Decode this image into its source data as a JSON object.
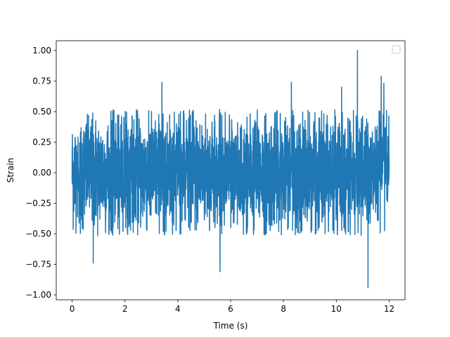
{
  "chart_data": {
    "type": "line",
    "title": "",
    "xlabel": "Time (s)",
    "ylabel": "Strain",
    "xlim": [
      -0.6,
      12.6
    ],
    "ylim": [
      -1.04,
      1.08
    ],
    "x_ticks": [
      0,
      2,
      4,
      6,
      8,
      10,
      12
    ],
    "x_tick_labels": [
      "0",
      "2",
      "4",
      "6",
      "8",
      "10",
      "12"
    ],
    "y_ticks": [
      1.0,
      0.75,
      0.5,
      0.25,
      0.0,
      -0.25,
      -0.5,
      -0.75,
      -1.0
    ],
    "y_tick_labels": [
      "1.00",
      "0.75",
      "0.50",
      "0.25",
      "0.00",
      "−0.25",
      "−0.50",
      "−0.75",
      "−1.00"
    ],
    "grid": false,
    "legend": {
      "placement": "top-right",
      "entries": []
    },
    "series": [
      {
        "color": "#1f77b4",
        "x_range": [
          0,
          12
        ],
        "mean": 0.0,
        "typical_amplitude": 0.45,
        "peaks": [
          {
            "x": 10.8,
            "y": 1.0
          },
          {
            "x": 11.2,
            "y": -0.94
          },
          {
            "x": 11.7,
            "y": 0.79
          },
          {
            "x": 11.8,
            "y": 0.73
          },
          {
            "x": 3.4,
            "y": 0.74
          },
          {
            "x": 8.3,
            "y": 0.74
          },
          {
            "x": 5.6,
            "y": -0.81
          },
          {
            "x": 0.8,
            "y": -0.74
          },
          {
            "x": 10.2,
            "y": 0.7
          }
        ]
      }
    ]
  }
}
